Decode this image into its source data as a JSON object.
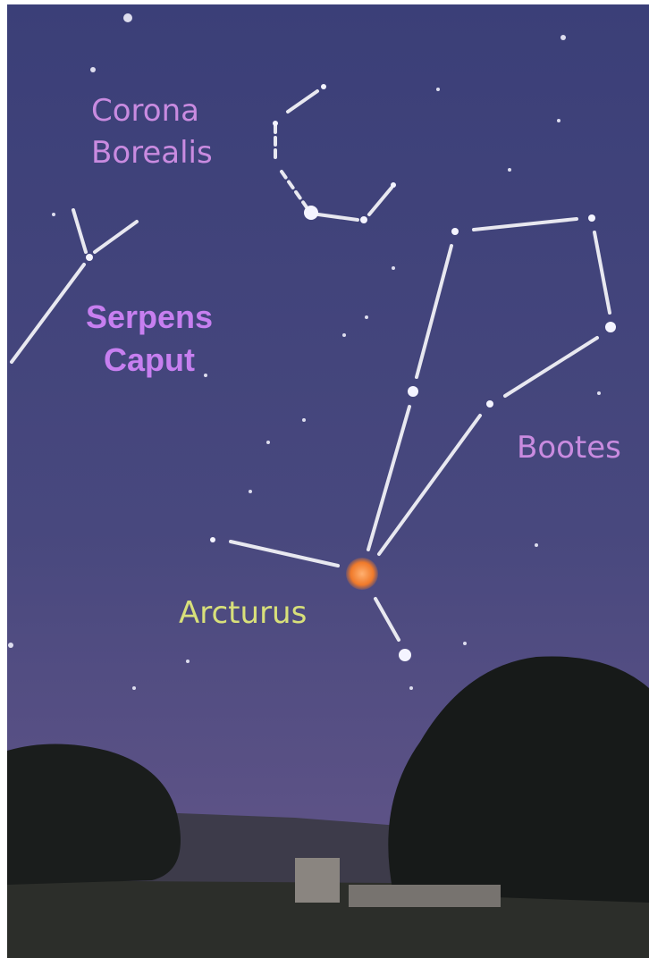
{
  "labels": [
    {
      "lines": [
        "Corona",
        "Borealis"
      ]
    },
    {
      "lines": [
        "Serpens",
        "Caput"
      ]
    },
    {
      "lines": [
        "Bootes"
      ]
    },
    {
      "lines": [
        "Arcturus"
      ]
    }
  ]
}
